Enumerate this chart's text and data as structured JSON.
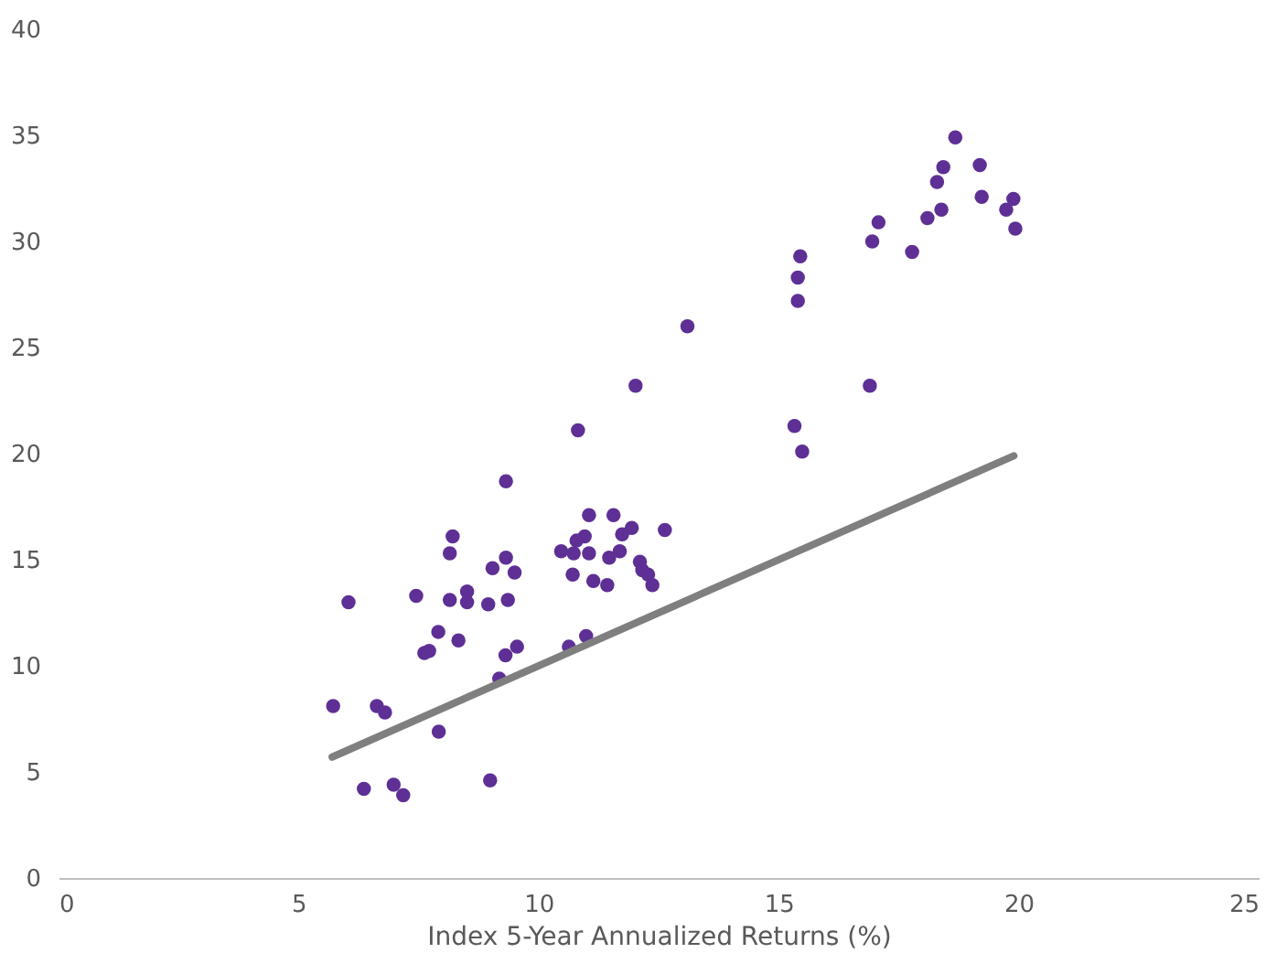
{
  "chart_data": {
    "type": "scatter",
    "xlabel": "Index 5-Year Annualized Returns (%)",
    "xlim": [
      0,
      25
    ],
    "xticks": [
      0,
      5,
      10,
      15,
      20,
      25
    ],
    "ylim": [
      0,
      40
    ],
    "yticks": [
      0,
      5,
      10,
      15,
      20,
      25,
      30,
      35,
      40
    ],
    "grid": false,
    "series": [
      {
        "type": "scatter",
        "marker": "circle",
        "color": "#5e2f94",
        "x": [
          10.82,
          9.32,
          11.05,
          11.56,
          8.21,
          8.15,
          7.45,
          6.04,
          8.51,
          8.51,
          8.15,
          8.95,
          9.36,
          9.32,
          9.04,
          9.5,
          10.47,
          10.73,
          10.79,
          10.96,
          11.05,
          10.71,
          11.14,
          11.43,
          11.47,
          11.69,
          11.74,
          11.94,
          12.63,
          12.11,
          12.16,
          12.28,
          12.37,
          7.91,
          8.33,
          7.72,
          7.62,
          10.63,
          10.99,
          9.18,
          9.55,
          9.31,
          5.72,
          6.63,
          6.8,
          7.92,
          6.36,
          6.98,
          7.18,
          8.99,
          18.68,
          19.19,
          18.43,
          18.3,
          19.23,
          19.89,
          19.74,
          19.93,
          18.39,
          18.1,
          17.08,
          16.95,
          17.78,
          15.45,
          15.4,
          15.4,
          13.1,
          12.02,
          16.9,
          15.33,
          15.49
        ],
        "values": [
          21.1,
          18.7,
          17.1,
          17.1,
          16.1,
          15.3,
          13.3,
          13.0,
          13.5,
          13.0,
          13.1,
          12.9,
          13.1,
          15.1,
          14.6,
          14.4,
          15.4,
          15.3,
          15.9,
          16.1,
          15.3,
          14.3,
          14.0,
          13.8,
          15.1,
          15.4,
          16.2,
          16.5,
          16.4,
          14.9,
          14.5,
          14.3,
          13.8,
          11.6,
          11.2,
          10.7,
          10.6,
          10.9,
          11.4,
          9.4,
          10.9,
          10.5,
          8.1,
          8.1,
          7.8,
          6.9,
          4.2,
          4.4,
          3.9,
          4.6,
          34.9,
          33.6,
          33.5,
          32.8,
          32.1,
          32.0,
          31.5,
          30.6,
          31.5,
          31.1,
          30.9,
          30.0,
          29.5,
          29.3,
          28.3,
          27.2,
          26.0,
          23.2,
          23.2,
          21.3,
          20.1
        ]
      },
      {
        "type": "line",
        "color": "#7f7f7f",
        "line_style": "solid",
        "marker": "none",
        "x": [
          5.7,
          19.9
        ],
        "values": [
          5.7,
          19.9
        ]
      }
    ]
  }
}
